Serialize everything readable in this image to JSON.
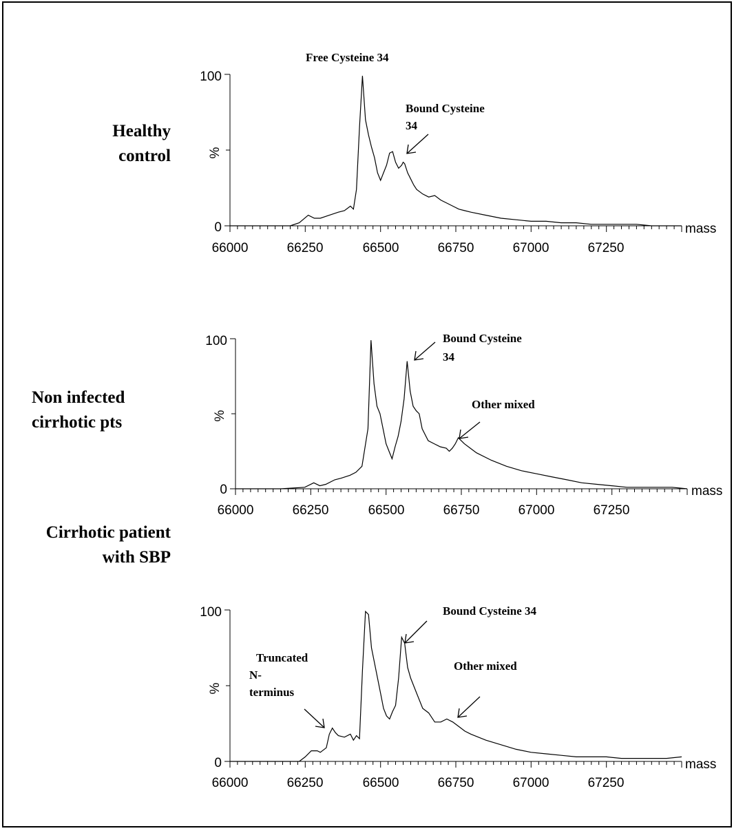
{
  "chart_data": [
    {
      "type": "line",
      "row_label": [
        "Healthy",
        "control"
      ],
      "x_tick_labels": [
        "66000",
        "66250",
        "66500",
        "66750",
        "67000",
        "67250"
      ],
      "x_axis_label": "mass",
      "y_axis_label": "%",
      "y_tick_labels": [
        "0",
        "100"
      ],
      "xlim": [
        66000,
        67500
      ],
      "ylim": [
        0,
        100
      ],
      "series": [
        {
          "x": [
            66000,
            66120,
            66200,
            66230,
            66260,
            66280,
            66300,
            66330,
            66360,
            66380,
            66400,
            66410,
            66420,
            66430,
            66440,
            66450,
            66460,
            66470,
            66480,
            66490,
            66500,
            66510,
            66520,
            66530,
            66540,
            66550,
            66560,
            66570,
            66575,
            66580,
            66590,
            66600,
            66610,
            66620,
            66640,
            66660,
            66680,
            66700,
            66720,
            66740,
            66760,
            66780,
            66800,
            66850,
            66900,
            66950,
            67000,
            67050,
            67100,
            67150,
            67200,
            67250,
            67300,
            67350,
            67400,
            67450,
            67500
          ],
          "y": [
            0,
            0,
            0,
            2,
            7,
            5,
            5,
            7,
            9,
            10,
            13,
            11,
            24,
            65,
            99,
            70,
            60,
            52,
            45,
            35,
            30,
            35,
            40,
            48,
            49,
            42,
            38,
            40,
            42,
            41,
            35,
            31,
            27,
            24,
            21,
            19,
            20,
            17,
            15,
            13,
            11,
            10,
            9,
            7,
            5,
            4,
            3,
            3,
            2,
            2,
            1,
            1,
            1,
            1,
            0,
            0,
            0
          ]
        }
      ],
      "annotations": [
        {
          "lines": [
            "Free Cysteine 34"
          ],
          "arrow": false
        },
        {
          "lines": [
            "Bound Cysteine",
            "34"
          ],
          "arrow": true
        }
      ]
    },
    {
      "type": "line",
      "row_label": [
        "Non infected",
        "cirrhotic pts"
      ],
      "x_tick_labels": [
        "66000",
        "66250",
        "66500",
        "66750",
        "67000",
        "67250"
      ],
      "x_axis_label": "mass",
      "y_axis_label": "%",
      "y_tick_labels": [
        "0",
        "100"
      ],
      "xlim": [
        66000,
        67500
      ],
      "ylim": [
        0,
        100
      ],
      "series": [
        {
          "x": [
            66000,
            66150,
            66230,
            66260,
            66280,
            66300,
            66330,
            66350,
            66380,
            66400,
            66420,
            66440,
            66450,
            66460,
            66470,
            66480,
            66490,
            66500,
            66510,
            66520,
            66530,
            66540,
            66550,
            66560,
            66570,
            66580,
            66590,
            66600,
            66610,
            66620,
            66640,
            66660,
            66680,
            66700,
            66710,
            66720,
            66730,
            66740,
            66760,
            66780,
            66800,
            66850,
            66900,
            66950,
            67000,
            67050,
            67100,
            67150,
            67200,
            67250,
            67300,
            67350,
            67400,
            67450,
            67500
          ],
          "y": [
            0,
            0,
            1,
            4,
            2,
            3,
            6,
            7,
            9,
            11,
            15,
            40,
            99,
            70,
            55,
            50,
            40,
            30,
            25,
            20,
            28,
            35,
            45,
            60,
            85,
            65,
            55,
            52,
            50,
            40,
            32,
            30,
            28,
            27,
            25,
            27,
            30,
            34,
            30,
            27,
            24,
            19,
            15,
            12,
            10,
            8,
            6,
            4,
            3,
            2,
            1,
            1,
            1,
            1,
            0
          ]
        }
      ],
      "annotations": [
        {
          "lines": [
            "Bound Cysteine",
            "34"
          ],
          "arrow": true
        },
        {
          "lines": [
            "Other mixed"
          ],
          "arrow": true
        }
      ]
    },
    {
      "type": "line",
      "row_label": [
        "Cirrhotic patient",
        "with SBP"
      ],
      "x_tick_labels": [
        "66000",
        "66250",
        "66500",
        "66750",
        "67000",
        "67250"
      ],
      "x_axis_label": "mass",
      "y_axis_label": "%",
      "y_tick_labels": [
        "0",
        "100"
      ],
      "xlim": [
        66000,
        67500
      ],
      "ylim": [
        0,
        100
      ],
      "series": [
        {
          "x": [
            66000,
            66200,
            66230,
            66250,
            66270,
            66290,
            66300,
            66320,
            66330,
            66340,
            66350,
            66360,
            66380,
            66400,
            66410,
            66420,
            66430,
            66440,
            66450,
            66460,
            66470,
            66480,
            66490,
            66500,
            66510,
            66520,
            66530,
            66540,
            66550,
            66560,
            66570,
            66580,
            66590,
            66600,
            66620,
            66640,
            66660,
            66680,
            66700,
            66720,
            66740,
            66760,
            66780,
            66800,
            66850,
            66900,
            66950,
            67000,
            67050,
            67100,
            67150,
            67200,
            67250,
            67300,
            67350,
            67400,
            67450,
            67500
          ],
          "y": [
            0,
            0,
            0,
            3,
            7,
            7,
            6,
            9,
            18,
            22,
            19,
            17,
            16,
            18,
            14,
            17,
            15,
            60,
            99,
            97,
            75,
            65,
            55,
            45,
            35,
            30,
            28,
            33,
            37,
            55,
            82,
            78,
            62,
            55,
            45,
            35,
            32,
            26,
            26,
            28,
            26,
            23,
            20,
            18,
            14,
            11,
            8,
            6,
            5,
            4,
            3,
            3,
            3,
            2,
            2,
            2,
            2,
            3
          ]
        }
      ],
      "annotations": [
        {
          "lines": [
            "Bound Cysteine 34"
          ],
          "arrow": true
        },
        {
          "lines": [
            "Truncated",
            "N-",
            "terminus"
          ],
          "arrow": true
        },
        {
          "lines": [
            "Other mixed"
          ],
          "arrow": true
        }
      ]
    }
  ]
}
